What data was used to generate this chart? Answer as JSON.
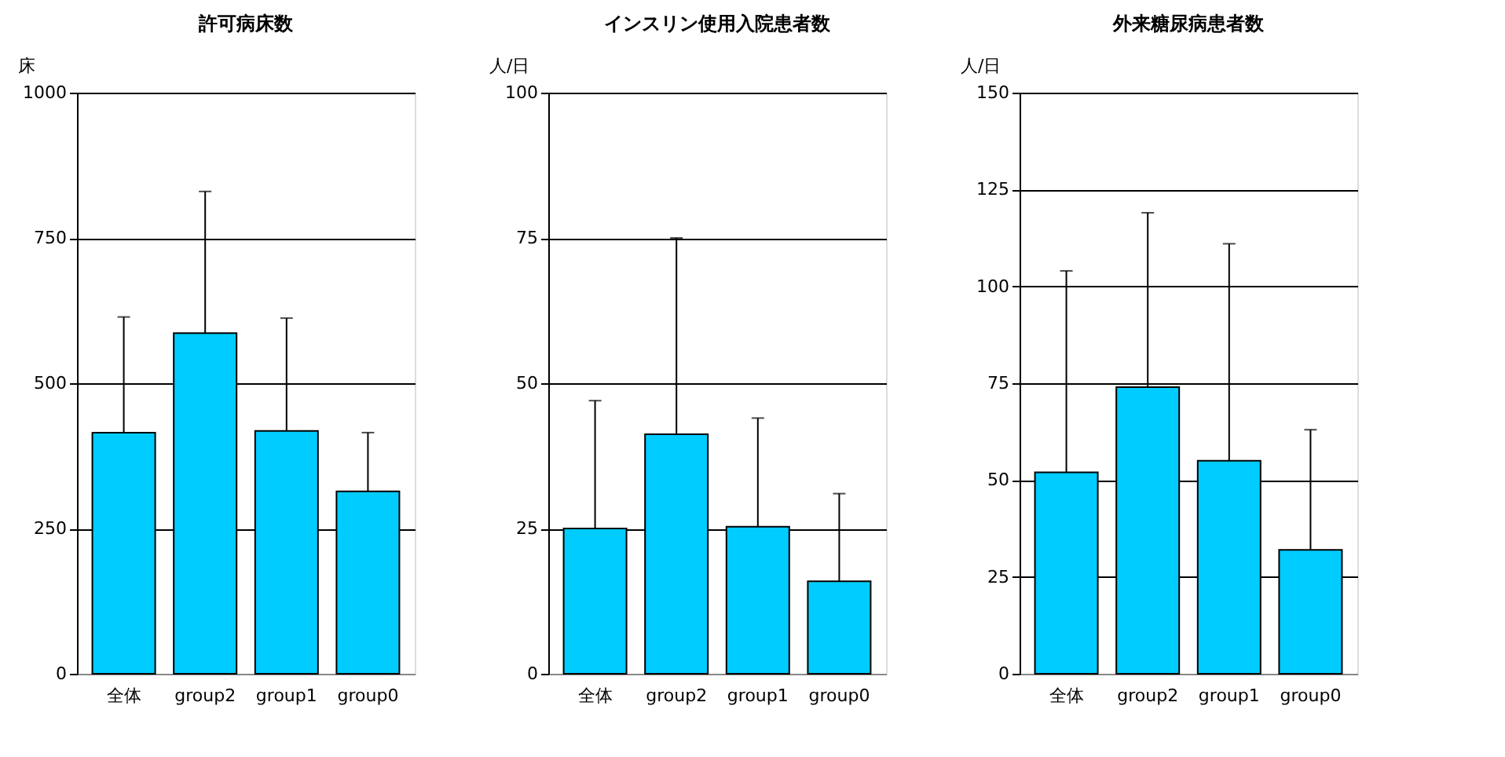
{
  "chart_data": [
    {
      "type": "bar",
      "title": "許可病床数",
      "ylabel": "床",
      "categories": [
        "全体",
        "group2",
        "group1",
        "group0"
      ],
      "series": [
        {
          "color": "#00ccff",
          "values": [
            415,
            586,
            418,
            314
          ],
          "errors": [
            [
              415,
              614
            ],
            [
              586,
              830
            ],
            [
              418,
              612
            ],
            [
              314,
              415
            ]
          ]
        }
      ],
      "ylim": [
        0,
        1000
      ],
      "yticks": [
        0,
        250,
        500,
        750,
        1000
      ],
      "grid": "y"
    },
    {
      "type": "bar",
      "title": "インスリン使用入院患者数",
      "ylabel": "人/日",
      "categories": [
        "全体",
        "group2",
        "group1",
        "group0"
      ],
      "series": [
        {
          "color": "#00ccff",
          "values": [
            25.0,
            41.2,
            25.3,
            15.9
          ],
          "errors": [
            [
              25.0,
              47
            ],
            [
              41.2,
              75
            ],
            [
              25.3,
              44
            ],
            [
              15.9,
              31
            ]
          ]
        }
      ],
      "ylim": [
        0,
        100
      ],
      "yticks": [
        0,
        25,
        50,
        75,
        100
      ],
      "grid": "y"
    },
    {
      "type": "bar",
      "title": "外来糖尿病患者数",
      "ylabel": "人/日",
      "categories": [
        "全体",
        "group2",
        "group1",
        "group0"
      ],
      "series": [
        {
          "color": "#00ccff",
          "values": [
            52,
            74,
            55,
            32
          ],
          "errors": [
            [
              52,
              104
            ],
            [
              74,
              119
            ],
            [
              55,
              111
            ],
            [
              32,
              63
            ]
          ]
        }
      ],
      "ylim": [
        0,
        150
      ],
      "yticks": [
        0,
        25,
        50,
        75,
        100,
        125,
        150
      ],
      "grid": "y"
    }
  ]
}
